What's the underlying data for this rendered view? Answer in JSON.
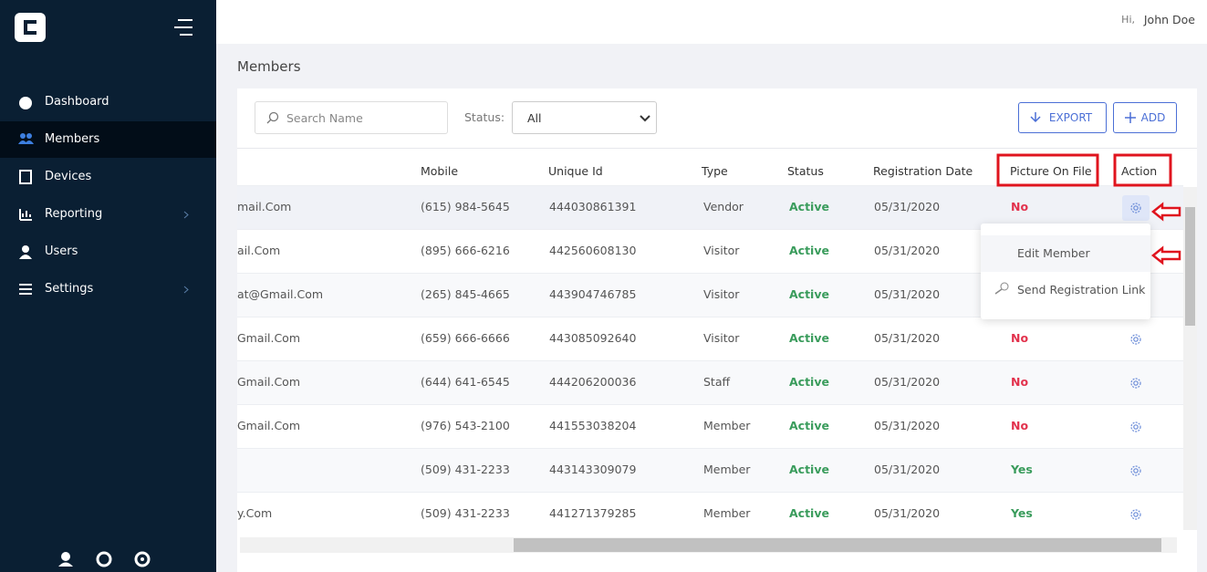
{
  "header": {
    "greeting": "Hi,",
    "user": "John Doe"
  },
  "sidebar": {
    "nav": [
      "Dashboard",
      "Members",
      "Devices",
      "Reporting",
      "Users",
      "Settings"
    ]
  },
  "page": {
    "title": "Members"
  },
  "toolbar": {
    "search_placeholder": "Search Name",
    "status_label": "Status:",
    "status_value": "All",
    "export": "EXPORT",
    "add": "ADD"
  },
  "table": {
    "columns": [
      "Mobile",
      "Unique Id",
      "Type",
      "Status",
      "Registration Date",
      "Picture On File",
      "Action"
    ],
    "rows": [
      {
        "email": "mail.Com",
        "mobile": "(615) 984-5645",
        "uid": "444030861391",
        "type": "Vendor",
        "status": "Active",
        "date": "05/31/2020",
        "picture": "No"
      },
      {
        "email": "ail.Com",
        "mobile": "(895) 666-6216",
        "uid": "442560608130",
        "type": "Visitor",
        "status": "Active",
        "date": "05/31/2020"
      },
      {
        "email": "at@Gmail.Com",
        "mobile": "(265) 845-4665",
        "uid": "443904746785",
        "type": "Visitor",
        "status": "Active",
        "date": "05/31/2020"
      },
      {
        "email": "Gmail.Com",
        "mobile": "(659) 666-6666",
        "uid": "443085092640",
        "type": "Visitor",
        "status": "Active",
        "date": "05/31/2020",
        "picture": "No"
      },
      {
        "email": "Gmail.Com",
        "mobile": "(644) 641-6545",
        "uid": "444206200036",
        "type": "Staff",
        "status": "Active",
        "date": "05/31/2020",
        "picture": "No"
      },
      {
        "email": "Gmail.Com",
        "mobile": "(976) 543-2100",
        "uid": "441553038204",
        "type": "Member",
        "status": "Active",
        "date": "05/31/2020",
        "picture": "No"
      },
      {
        "mobile": "(509) 431-2233",
        "uid": "443143309079",
        "type": "Member",
        "status": "Active",
        "date": "05/31/2020",
        "picture": "Yes"
      },
      {
        "email": "y.Com",
        "mobile": "(509) 431-2233",
        "uid": "441271379285",
        "type": "Member",
        "status": "Active",
        "date": "05/31/2020",
        "picture": "Yes"
      }
    ]
  },
  "action_menu": {
    "items": [
      "Edit Member",
      "Send Registration Link"
    ]
  }
}
